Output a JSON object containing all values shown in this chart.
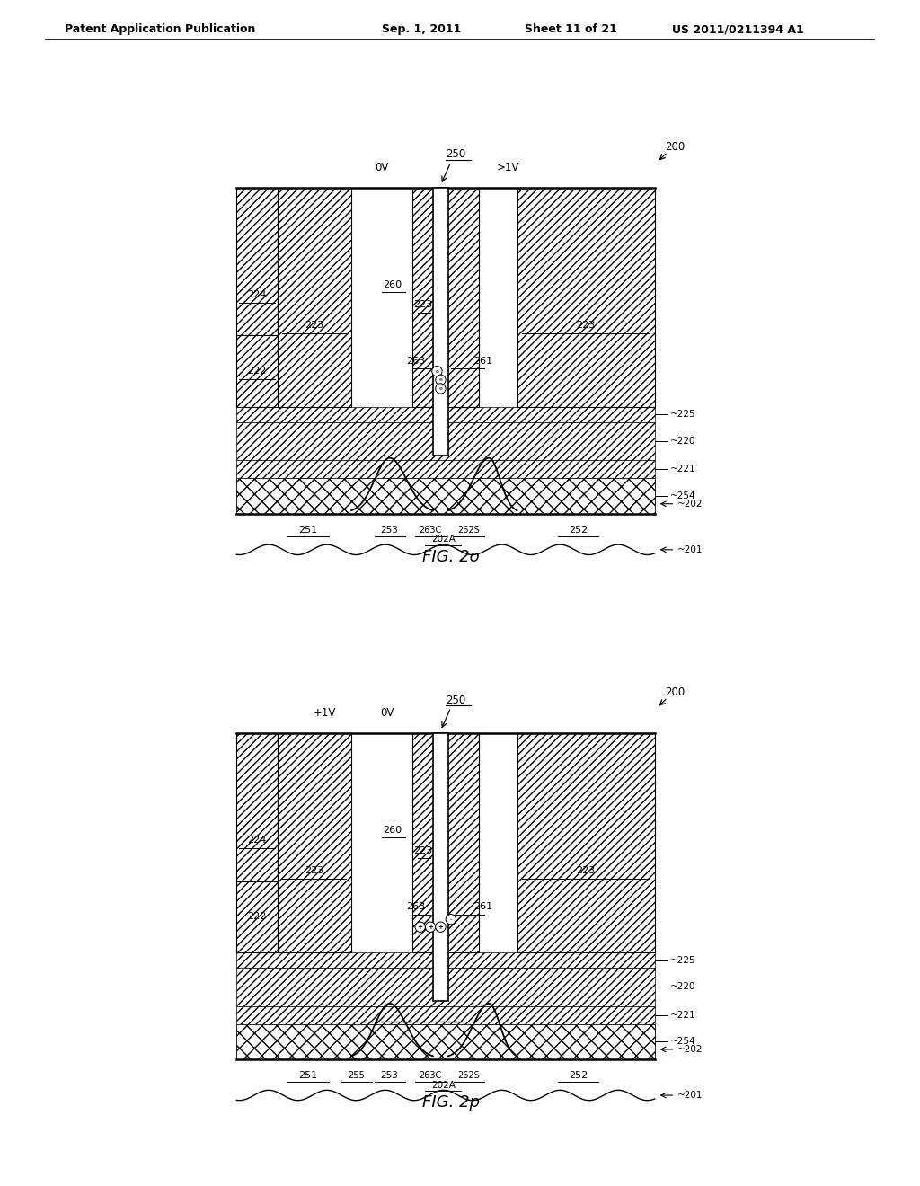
{
  "header_left": "Patent Application Publication",
  "header_mid1": "Sep. 1, 2011",
  "header_mid2": "Sheet 11 of 21",
  "header_right": "US 2011/0211394 A1",
  "fig_label_top": "FIG. 2o",
  "fig_label_bot": "FIG. 2p",
  "bg_color": "#ffffff"
}
